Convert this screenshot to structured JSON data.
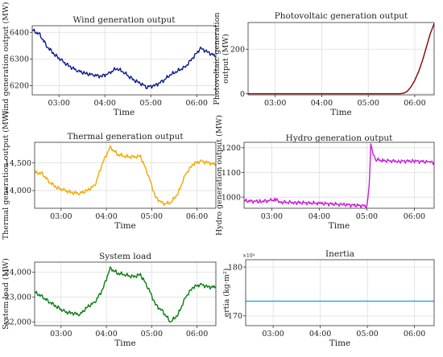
{
  "chart_data": [
    {
      "type": "line",
      "title": "Wind generation output",
      "xlabel": "Time",
      "ylabel": "Wind generation output (MW)",
      "ylabel_clipped": "Wind generation output (MW)",
      "xlim": [
        "02:25",
        "06:25"
      ],
      "ylim": [
        6165,
        6425
      ],
      "yticks": [
        6200,
        6300,
        6400
      ],
      "ytick_labels": [
        "6200",
        "6300",
        "6400"
      ],
      "xticks": [
        "03:00",
        "04:00",
        "05:00",
        "06:00"
      ],
      "grid": true,
      "color": "#0d1a8c",
      "series": [
        {
          "x": [
            "02:25",
            "02:35",
            "02:45",
            "02:55",
            "03:05",
            "03:15",
            "03:25",
            "03:35",
            "03:45",
            "03:55",
            "04:05",
            "04:15",
            "04:25",
            "04:35",
            "04:45",
            "04:55",
            "05:05",
            "05:15",
            "05:25",
            "05:35",
            "05:45",
            "05:55",
            "06:05",
            "06:15",
            "06:25"
          ],
          "values": [
            6410,
            6390,
            6345,
            6315,
            6290,
            6270,
            6255,
            6245,
            6240,
            6235,
            6245,
            6265,
            6250,
            6225,
            6210,
            6195,
            6200,
            6215,
            6240,
            6255,
            6270,
            6305,
            6340,
            6325,
            6310
          ]
        }
      ]
    },
    {
      "type": "line",
      "title": "Photovoltaic generation output",
      "xlabel": "Time",
      "ylabel": "Photovoltaic generation output (MW)",
      "ylabel_lines": [
        "Photovoltaic generation",
        "output (MW)"
      ],
      "xlim": [
        "02:25",
        "06:25"
      ],
      "ylim": [
        -5,
        320
      ],
      "yticks": [
        0,
        200
      ],
      "ytick_labels": [
        "0",
        "200"
      ],
      "xticks": [
        "03:00",
        "04:00",
        "05:00",
        "06:00"
      ],
      "grid": true,
      "color": "#8b0000",
      "series": [
        {
          "x": [
            "02:25",
            "03:00",
            "04:00",
            "05:00",
            "05:40",
            "05:45",
            "05:50",
            "05:55",
            "06:00",
            "06:05",
            "06:10",
            "06:15",
            "06:20",
            "06:25"
          ],
          "values": [
            0,
            0,
            0,
            0,
            0,
            2,
            10,
            30,
            60,
            100,
            150,
            210,
            270,
            315
          ]
        }
      ]
    },
    {
      "type": "line",
      "title": "Thermal generation output",
      "xlabel": "Time",
      "ylabel": "Thermal generation output (MW)",
      "xlim": [
        "02:25",
        "06:25"
      ],
      "ylim": [
        13680,
        14870
      ],
      "yticks": [
        14000,
        14500
      ],
      "ytick_labels": [
        "14,000",
        "14,500"
      ],
      "xticks": [
        "03:00",
        "04:00",
        "05:00",
        "06:00"
      ],
      "grid": true,
      "color": "#f5a800",
      "series": [
        {
          "x": [
            "02:25",
            "02:35",
            "02:45",
            "02:55",
            "03:05",
            "03:15",
            "03:25",
            "03:35",
            "03:45",
            "03:55",
            "04:05",
            "04:15",
            "04:25",
            "04:35",
            "04:45",
            "04:55",
            "05:05",
            "05:15",
            "05:25",
            "05:35",
            "05:45",
            "05:55",
            "06:05",
            "06:15",
            "06:25"
          ],
          "values": [
            14330,
            14300,
            14150,
            14050,
            14000,
            13960,
            13950,
            14000,
            14100,
            14500,
            14780,
            14650,
            14620,
            14600,
            14620,
            14300,
            13880,
            13760,
            13780,
            13950,
            14300,
            14480,
            14530,
            14500,
            14470
          ]
        }
      ]
    },
    {
      "type": "line",
      "title": "Hydro generation output",
      "xlabel": "Time",
      "ylabel": "Hydro generation output (MW)",
      "xlim": [
        "02:25",
        "06:25"
      ],
      "ylim": [
        955,
        1222
      ],
      "yticks": [
        1000,
        1100,
        1200
      ],
      "ytick_labels": [
        "1000",
        "1100",
        "1200"
      ],
      "xticks": [
        "03:00",
        "04:00",
        "05:00",
        "06:00"
      ],
      "grid": true,
      "color": "#c71fd6",
      "series": [
        {
          "x": [
            "02:25",
            "02:45",
            "03:00",
            "03:05",
            "03:10",
            "03:30",
            "04:00",
            "04:30",
            "05:00",
            "05:03",
            "05:05",
            "05:08",
            "05:12",
            "05:20",
            "05:40",
            "06:00",
            "06:20",
            "06:25"
          ],
          "values": [
            985,
            982,
            987,
            990,
            980,
            978,
            975,
            970,
            964,
            1050,
            1210,
            1175,
            1152,
            1148,
            1145,
            1146,
            1142,
            1140
          ]
        }
      ]
    },
    {
      "type": "line",
      "title": "System load",
      "xlabel": "Time",
      "ylabel": "System load (MW)",
      "xlim": [
        "02:25",
        "06:25"
      ],
      "ylim": [
        21850,
        24400
      ],
      "yticks": [
        22000,
        23000,
        24000
      ],
      "ytick_labels": [
        "22,000",
        "23,000",
        "24,000"
      ],
      "xticks": [
        "03:00",
        "04:00",
        "05:00",
        "06:00"
      ],
      "grid": true,
      "color": "#0a7d12",
      "series": [
        {
          "x": [
            "02:25",
            "02:35",
            "02:45",
            "02:55",
            "03:05",
            "03:15",
            "03:25",
            "03:35",
            "03:45",
            "03:55",
            "04:05",
            "04:15",
            "04:25",
            "04:35",
            "04:45",
            "04:55",
            "05:05",
            "05:15",
            "05:25",
            "05:35",
            "05:45",
            "05:55",
            "06:05",
            "06:15",
            "06:25"
          ],
          "values": [
            23200,
            23000,
            22800,
            22600,
            22400,
            22350,
            22300,
            22600,
            22800,
            23300,
            24150,
            23950,
            23900,
            23800,
            23900,
            23400,
            22700,
            22400,
            22000,
            22300,
            23000,
            23400,
            23500,
            23400,
            23400
          ]
        }
      ]
    },
    {
      "type": "line",
      "title": "Inertia",
      "xlabel": "Time",
      "ylabel": "ertia (kg·m²)",
      "ylabel_clipped": "ertia (kg·m²)",
      "y_multiplier": "×10⁴",
      "xlim": [
        "02:25",
        "06:25"
      ],
      "ylim": [
        168,
        181.5
      ],
      "yticks": [
        170,
        180
      ],
      "ytick_labels": [
        "170",
        "180"
      ],
      "xticks": [
        "03:00",
        "04:00",
        "05:00",
        "06:00"
      ],
      "grid": true,
      "color": "#1ea7e1",
      "series": [
        {
          "x": [
            "02:25",
            "06:25"
          ],
          "values": [
            173,
            173
          ]
        }
      ]
    }
  ]
}
